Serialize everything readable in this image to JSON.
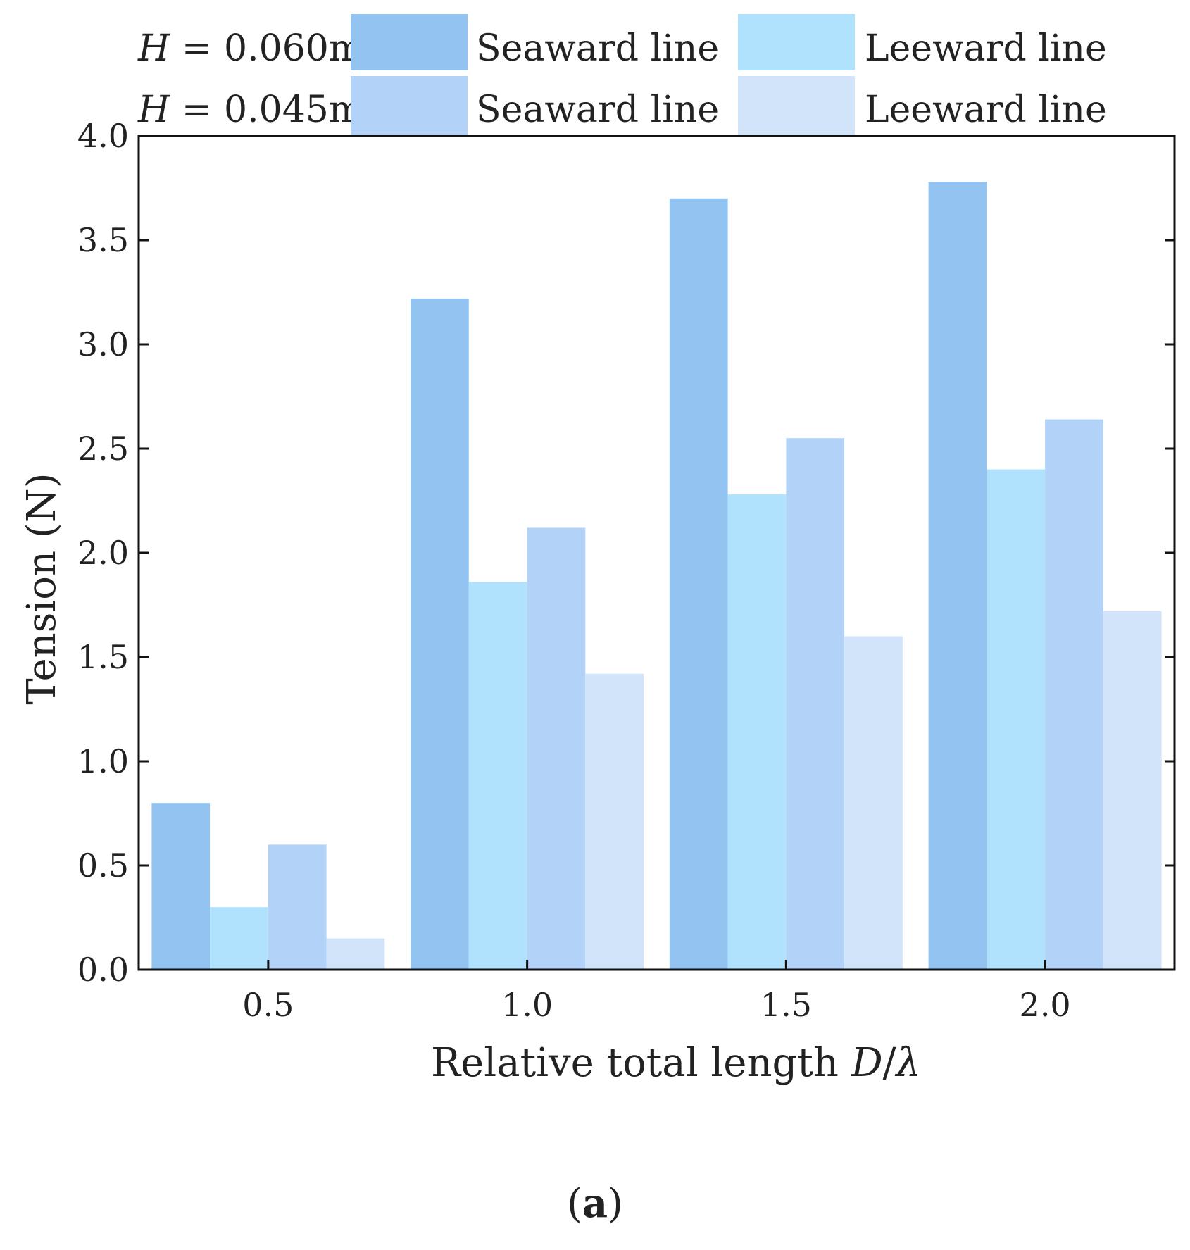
{
  "chart_data": {
    "type": "bar",
    "title": "",
    "caption_open": "(",
    "caption_letter": "a",
    "caption_close": ")",
    "xlabel": {
      "text": "Relative total length ",
      "var": "D",
      "sep": "/",
      "sym": "λ"
    },
    "ylabel": "Tension (N)",
    "categories": [
      "0.5",
      "1.0",
      "1.5",
      "2.0"
    ],
    "ylim": [
      0,
      4.0
    ],
    "yticks": [
      "0.0",
      "0.5",
      "1.0",
      "1.5",
      "2.0",
      "2.5",
      "3.0",
      "3.5",
      "4.0"
    ],
    "legend_groups": [
      {
        "prefix": "H",
        "eq": " = ",
        "value": "0.060m",
        "labels": [
          "Seaward line",
          "Leeward line"
        ]
      },
      {
        "prefix": "H",
        "eq": " = ",
        "value": "0.045m",
        "labels": [
          "Seaward line",
          "Leeward line"
        ]
      }
    ],
    "series": [
      {
        "name": "H = 0.060m Seaward line",
        "color": "#93c4f1",
        "values": [
          0.8,
          3.22,
          3.7,
          3.78
        ]
      },
      {
        "name": "H = 0.060m Leeward line",
        "color": "#b0e1fd",
        "values": [
          0.3,
          1.86,
          2.28,
          2.4
        ]
      },
      {
        "name": "H = 0.045m Seaward line",
        "color": "#b2d2f7",
        "values": [
          0.6,
          2.12,
          2.55,
          2.64
        ]
      },
      {
        "name": "H = 0.045m Leeward line",
        "color": "#d2e4f9",
        "values": [
          0.15,
          1.42,
          1.6,
          1.72
        ]
      }
    ]
  }
}
